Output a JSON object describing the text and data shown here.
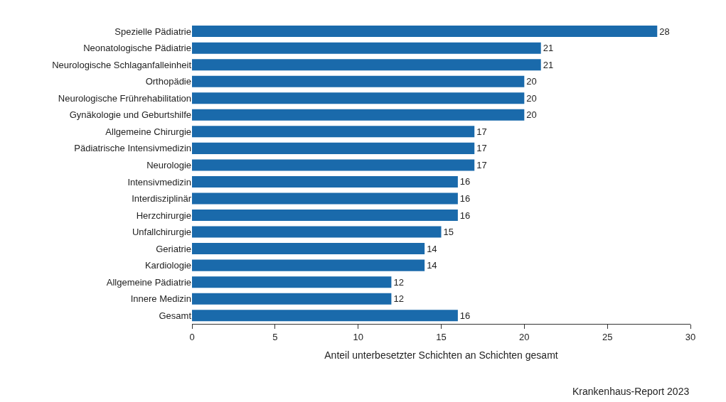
{
  "chart_data": {
    "type": "bar",
    "orientation": "horizontal",
    "xlabel": "Anteil unterbesetzter Schichten an Schichten gesamt",
    "categories": [
      "Spezielle Pädiatrie",
      "Neonatologische Pädiatrie",
      "Neurologische Schlaganfalleinheit",
      "Orthopädie",
      "Neurologische Frührehabilitation",
      "Gynäkologie und Geburtshilfe",
      "Allgemeine Chirurgie",
      "Pädiatrische Intensivmedizin",
      "Neurologie",
      "Intensivmedizin",
      "Interdisziplinär",
      "Herzchirurgie",
      "Unfallchirurgie",
      "Geriatrie",
      "Kardiologie",
      "Allgemeine Pädiatrie",
      "Innere Medizin",
      "Gesamt"
    ],
    "values": [
      28,
      21,
      21,
      20,
      20,
      20,
      17,
      17,
      17,
      16,
      16,
      16,
      15,
      14,
      14,
      12,
      12,
      16
    ],
    "color": "#1a6aab",
    "xlim": [
      0,
      30
    ],
    "xticks": [
      0,
      5,
      10,
      15,
      20,
      25,
      30
    ],
    "legend": false,
    "data_labels": true,
    "annotations": [
      "Krankenhaus-Report 2023"
    ]
  }
}
